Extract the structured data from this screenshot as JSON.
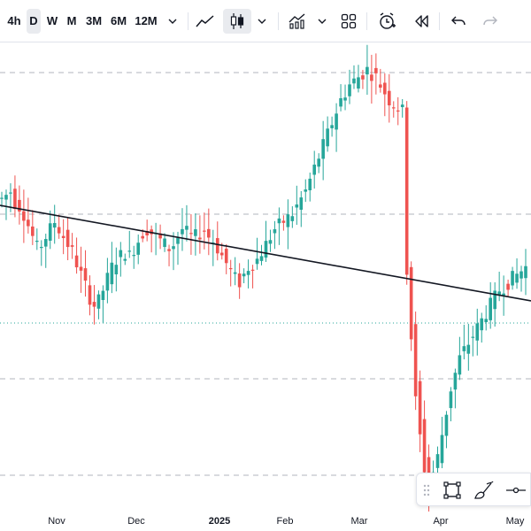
{
  "toolbar": {
    "timeframes": [
      {
        "label": "4h",
        "active": false
      },
      {
        "label": "D",
        "active": true
      },
      {
        "label": "W",
        "active": false
      },
      {
        "label": "M",
        "active": false
      },
      {
        "label": "3M",
        "active": false
      },
      {
        "label": "6M",
        "active": false
      },
      {
        "label": "12M",
        "active": false
      }
    ],
    "icons": [
      "chevron-down-icon",
      "line-chart-icon",
      "candles-icon",
      "chevron-down-icon",
      "indicators-icon",
      "chevron-down-icon",
      "layout-grid-icon",
      "alert-clock-icon",
      "replay-icon",
      "undo-icon",
      "redo-icon"
    ]
  },
  "time_axis": {
    "labels": [
      {
        "text": "Nov",
        "bold": false
      },
      {
        "text": "Dec",
        "bold": false
      },
      {
        "text": "2025",
        "bold": true
      },
      {
        "text": "Feb",
        "bold": false
      },
      {
        "text": "Mar",
        "bold": false
      },
      {
        "text": "Apr",
        "bold": false
      },
      {
        "text": "May",
        "bold": false
      }
    ]
  },
  "floating_tools": [
    "drag-handle-icon",
    "rectangle-select-icon",
    "brush-icon",
    "horizontal-line-icon"
  ],
  "colors": {
    "up": "#26a69a",
    "down": "#ef5350",
    "trendline": "#131722",
    "grid_dash": "#b2b5be",
    "price_dots": "#26a69a"
  },
  "chart_data": {
    "type": "candlestick",
    "y_scale": "relative (no price axis visible)",
    "trendline": {
      "from_index": 0,
      "to_index": 119
    },
    "series_close_trend": [
      80,
      81,
      82,
      79,
      78,
      76,
      73,
      70,
      67,
      68,
      70,
      72,
      74,
      72,
      70,
      68,
      66,
      63,
      60,
      57,
      54,
      52,
      53,
      56,
      59,
      62,
      64,
      65,
      66,
      65,
      67,
      69,
      71,
      72,
      71,
      70,
      69,
      68,
      67,
      68,
      70,
      72,
      71,
      70,
      70,
      71,
      72,
      70,
      69,
      67,
      65,
      63,
      61,
      59,
      58,
      60,
      62,
      63,
      64,
      66,
      68,
      70,
      72,
      73,
      74,
      75,
      76,
      78,
      80,
      82,
      85,
      88,
      91,
      94,
      97,
      100,
      103,
      106,
      108,
      110,
      111,
      112,
      113,
      114,
      113,
      112,
      110,
      108,
      106,
      105,
      104,
      103,
      60,
      45,
      30,
      20,
      10,
      5,
      8,
      12,
      18,
      24,
      30,
      34,
      38,
      40,
      42,
      44,
      46,
      48,
      50,
      52,
      54,
      56,
      57,
      58,
      59,
      60,
      61,
      62
    ]
  }
}
